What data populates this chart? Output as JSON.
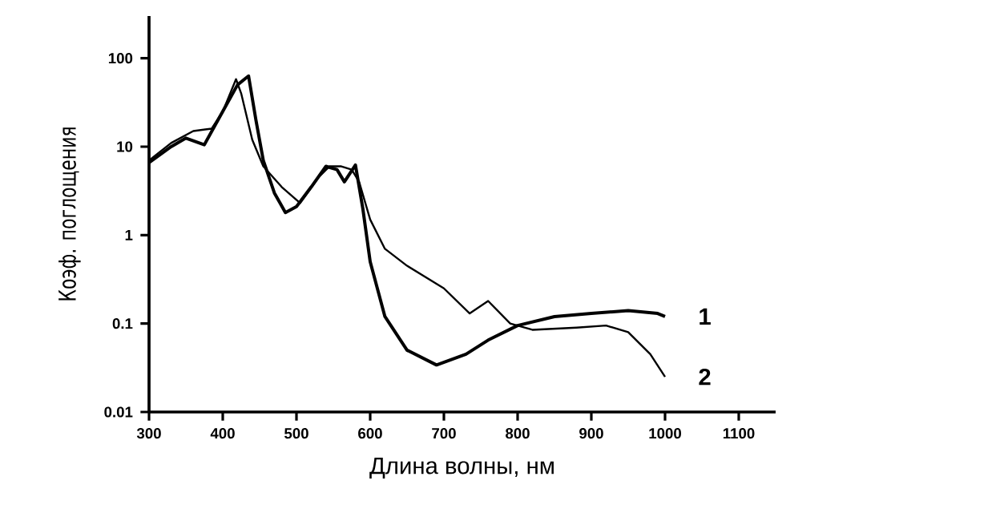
{
  "chart_data": {
    "type": "line",
    "xlabel": "Длина волны, нм",
    "ylabel": "Коэф. поглощения",
    "log": "y",
    "xlim": [
      300,
      1150
    ],
    "ylim": [
      0.01,
      300
    ],
    "xticks": [
      300,
      400,
      500,
      600,
      700,
      800,
      900,
      1000,
      1100
    ],
    "yticks": [
      0.01,
      0.1,
      1,
      10,
      100
    ],
    "grid": false,
    "legend": false,
    "marker": "none",
    "line_style": "solid",
    "series": [
      {
        "name": "1",
        "color": "#000000",
        "x": [
          300,
          330,
          350,
          375,
          400,
          420,
          435,
          445,
          455,
          470,
          485,
          500,
          520,
          540,
          555,
          565,
          580,
          590,
          600,
          620,
          650,
          690,
          730,
          760,
          800,
          850,
          900,
          950,
          990,
          1000
        ],
        "values": [
          6.6,
          10,
          12.5,
          10.5,
          25,
          50,
          63,
          20,
          7,
          3,
          1.8,
          2.1,
          3.5,
          6,
          5.5,
          4,
          6.2,
          2,
          0.5,
          0.12,
          0.05,
          0.034,
          0.045,
          0.065,
          0.095,
          0.12,
          0.13,
          0.14,
          0.13,
          0.12
        ]
      },
      {
        "name": "2",
        "color": "#000000",
        "x": [
          300,
          330,
          360,
          385,
          400,
          418,
          425,
          440,
          455,
          480,
          505,
          530,
          545,
          560,
          575,
          585,
          600,
          620,
          650,
          700,
          735,
          760,
          790,
          820,
          880,
          920,
          950,
          980,
          1000
        ],
        "values": [
          7,
          11,
          15,
          16,
          25,
          58,
          40,
          12,
          6,
          3.5,
          2.3,
          4.5,
          6,
          6,
          5.5,
          4,
          1.5,
          0.7,
          0.45,
          0.25,
          0.13,
          0.18,
          0.1,
          0.085,
          0.09,
          0.095,
          0.08,
          0.045,
          0.025
        ]
      }
    ]
  }
}
